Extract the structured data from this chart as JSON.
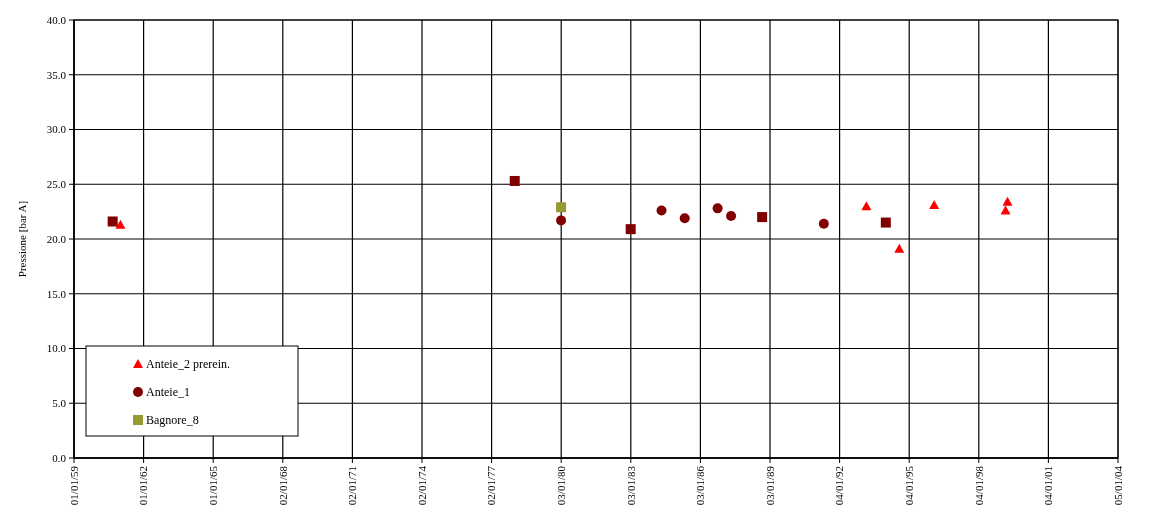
{
  "chart_data": {
    "type": "scatter",
    "ylabel": "Pressione [bar A]",
    "xlim": [
      "1959-01-01",
      "2004-01-05"
    ],
    "xticks": [
      {
        "value": "1959-01-01",
        "label": "01/01/59"
      },
      {
        "value": "1962-01-01",
        "label": "01/01/62"
      },
      {
        "value": "1965-01-01",
        "label": "01/01/65"
      },
      {
        "value": "1968-01-02",
        "label": "02/01/68"
      },
      {
        "value": "1971-01-02",
        "label": "02/01/71"
      },
      {
        "value": "1974-01-02",
        "label": "02/01/74"
      },
      {
        "value": "1977-01-02",
        "label": "02/01/77"
      },
      {
        "value": "1980-01-03",
        "label": "03/01/80"
      },
      {
        "value": "1983-01-03",
        "label": "03/01/83"
      },
      {
        "value": "1986-01-03",
        "label": "03/01/86"
      },
      {
        "value": "1989-01-03",
        "label": "03/01/89"
      },
      {
        "value": "1992-01-04",
        "label": "04/01/92"
      },
      {
        "value": "1995-01-04",
        "label": "04/01/95"
      },
      {
        "value": "1998-01-04",
        "label": "04/01/98"
      },
      {
        "value": "2001-01-04",
        "label": "04/01/01"
      },
      {
        "value": "2004-01-05",
        "label": "05/01/04"
      }
    ],
    "ylim": [
      0,
      40
    ],
    "yticks": [
      {
        "value": 0,
        "label": "0.0"
      },
      {
        "value": 5,
        "label": "5.0"
      },
      {
        "value": 10,
        "label": "10.0"
      },
      {
        "value": 15,
        "label": "15.0"
      },
      {
        "value": 20,
        "label": "20.0"
      },
      {
        "value": 25,
        "label": "25.0"
      },
      {
        "value": 30,
        "label": "30.0"
      },
      {
        "value": 35,
        "label": "35.0"
      },
      {
        "value": 40,
        "label": "40.0"
      }
    ],
    "grid": true,
    "legend": "bottom left",
    "series": [
      {
        "name": "Anteie_2 prerein.",
        "color": "#ff0000",
        "marker": "triangle",
        "x": [
          "1961-01",
          "1993-03",
          "1994-08",
          "1996-02",
          "1999-04",
          "1999-03"
        ],
        "values": [
          21.3,
          23.0,
          19.1,
          23.1,
          23.4,
          22.6
        ]
      },
      {
        "name": "Anteie_1",
        "color": "#800000",
        "marker": "circle",
        "x": [
          "1980-01",
          "1984-05",
          "1985-05",
          "1986-10",
          "1987-05",
          "1991-05"
        ],
        "values": [
          21.7,
          22.6,
          21.9,
          22.8,
          22.1,
          21.4
        ]
      },
      {
        "name": "Bagnore_8",
        "color": "#999933",
        "marker": "square",
        "x": [
          "1980-01"
        ],
        "values": [
          22.9
        ]
      },
      {
        "color": "#800000",
        "marker": "square",
        "x": [
          "1960-09",
          "1978-01",
          "1983-01",
          "1988-09",
          "1994-01"
        ],
        "values": [
          21.6,
          25.3,
          20.9,
          22.0,
          21.5
        ]
      }
    ]
  }
}
